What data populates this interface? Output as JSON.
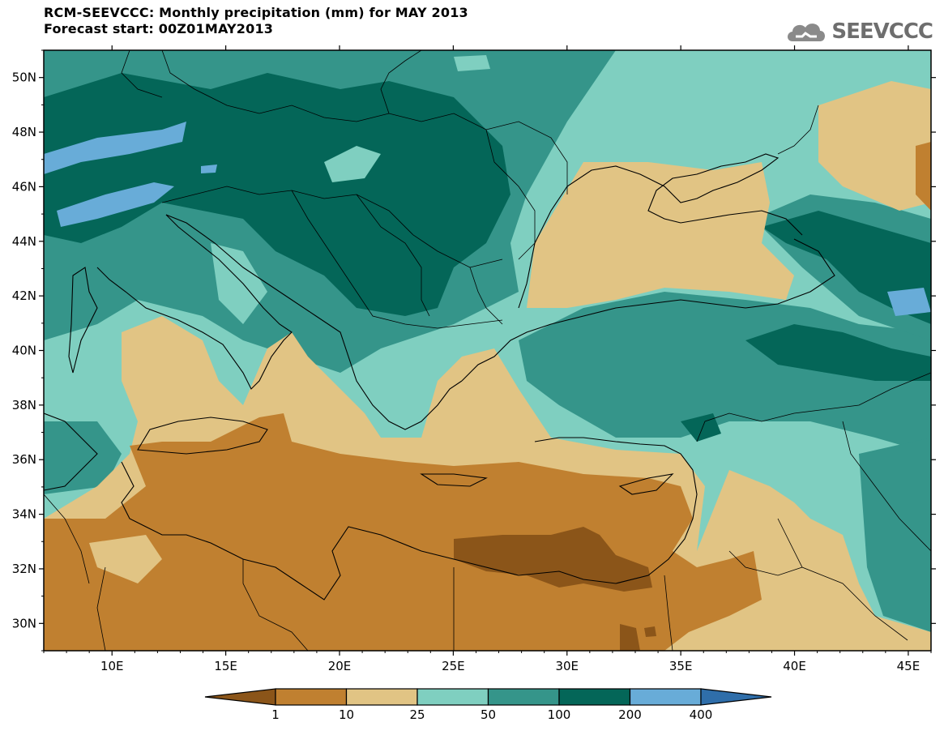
{
  "header": {
    "title_line1": "RCM-SEEVCCC: Monthly precipitation (mm) for MAY 2013",
    "title_line2": "Forecast start: 00Z01MAY2013",
    "logo_text": "SEEVCCC",
    "logo_icon": "cloud-icon"
  },
  "map": {
    "lat_labels": [
      "50N",
      "48N",
      "46N",
      "44N",
      "42N",
      "40N",
      "38N",
      "36N",
      "34N",
      "32N",
      "30N"
    ],
    "lon_labels": [
      "10E",
      "15E",
      "20E",
      "25E",
      "30E",
      "35E",
      "40E",
      "45E"
    ],
    "lat_values": [
      50,
      48,
      46,
      44,
      42,
      40,
      38,
      36,
      34,
      32,
      30
    ],
    "lon_values": [
      10,
      15,
      20,
      25,
      30,
      35,
      40,
      45
    ],
    "extent": {
      "lon_min": 7,
      "lon_max": 46,
      "lat_min": 29,
      "lat_max": 51
    }
  },
  "colorbar": {
    "labels": [
      "1",
      "10",
      "25",
      "50",
      "100",
      "200",
      "400"
    ],
    "colors": [
      "#8b5519",
      "#c08030",
      "#e1c484",
      "#7fcfc0",
      "#35958a",
      "#046658",
      "#68acd8",
      "#2f6eaa"
    ],
    "units": "mm"
  }
}
